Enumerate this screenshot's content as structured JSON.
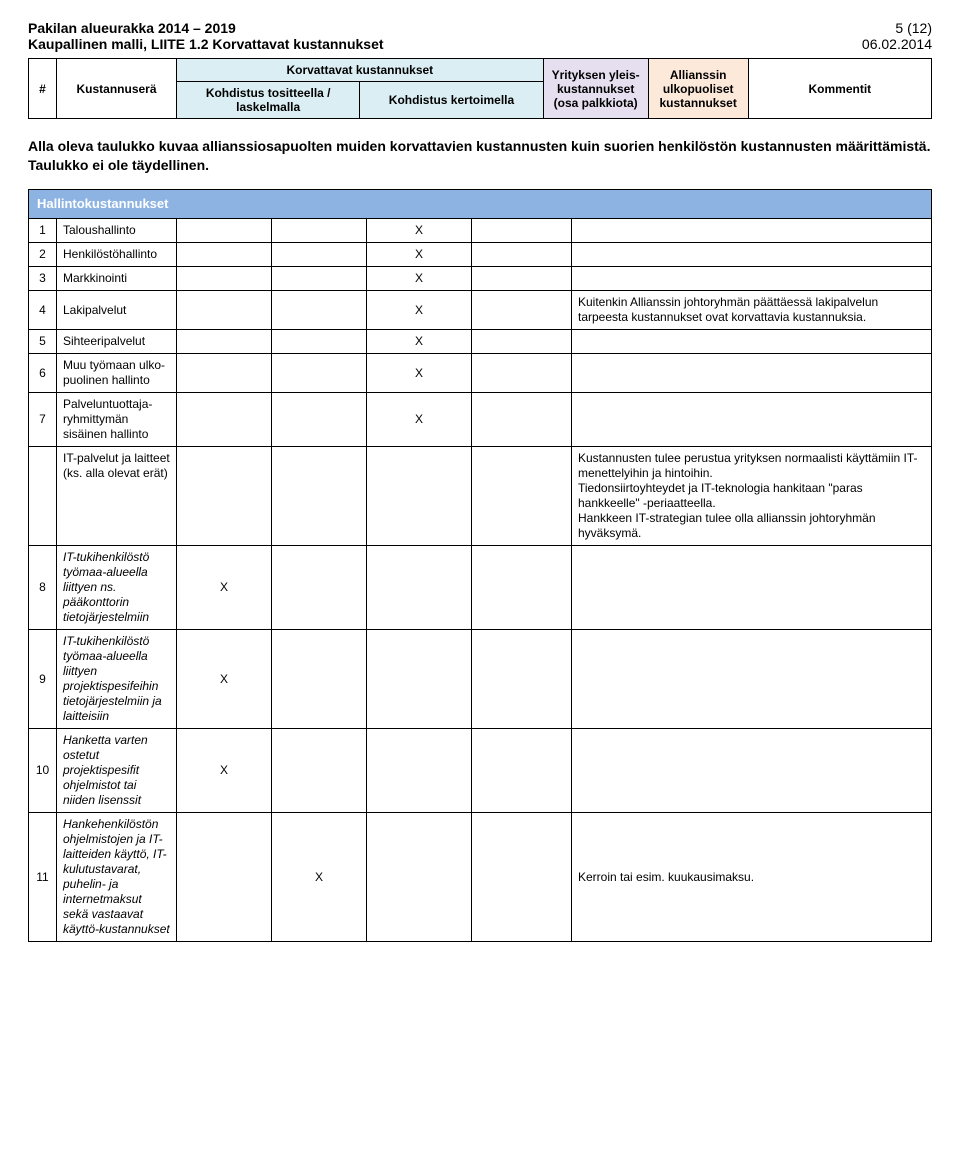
{
  "header": {
    "title_line1": "Pakilan alueurakka 2014 – 2019",
    "title_line2": "Kaupallinen malli, LIITE 1.2 Korvattavat kustannukset",
    "page_no": "5 (12)",
    "date": "06.02.2014"
  },
  "columns": {
    "num": "#",
    "kustannusera": "Kustannuserä",
    "korvattavat_group": "Korvattavat kustannukset",
    "kohdistus_tositteella": "Kohdistus tositteella / laskelmalla",
    "kohdistus_kertoimella": "Kohdistus kertoimella",
    "yleiskustannukset": "Yrityksen yleis-kustannukset (osa palkkiota)",
    "allianssin": "Allianssin ulkopuoliset kustannukset",
    "kommentit": "Kommentit"
  },
  "intro_para": "Alla oleva taulukko kuvaa allianssiosapuolten muiden korvattavien kustannusten kuin suorien henkilöstön kustannusten määrittämistä. Taulukko ei ole täydellinen.",
  "section_title": "Hallintokustannukset",
  "rows": [
    {
      "n": "1",
      "name": "Taloushallinto",
      "k1": "",
      "k2": "",
      "yl": "X",
      "al": "",
      "kom": ""
    },
    {
      "n": "2",
      "name": "Henkilöstöhallinto",
      "k1": "",
      "k2": "",
      "yl": "X",
      "al": "",
      "kom": ""
    },
    {
      "n": "3",
      "name": "Markkinointi",
      "k1": "",
      "k2": "",
      "yl": "X",
      "al": "",
      "kom": ""
    },
    {
      "n": "4",
      "name": "Lakipalvelut",
      "k1": "",
      "k2": "",
      "yl": "X",
      "al": "",
      "kom": "Kuitenkin Allianssin johtoryhmän päättäessä lakipalvelun tarpeesta kustannukset ovat korvattavia kustannuksia."
    },
    {
      "n": "5",
      "name": "Sihteeripalvelut",
      "k1": "",
      "k2": "",
      "yl": "X",
      "al": "",
      "kom": ""
    },
    {
      "n": "6",
      "name": "Muu työmaan ulko-puolinen hallinto",
      "k1": "",
      "k2": "",
      "yl": "X",
      "al": "",
      "kom": ""
    },
    {
      "n": "7",
      "name": "Palveluntuottaja-ryhmittymän sisäinen hallinto",
      "k1": "",
      "k2": "",
      "yl": "X",
      "al": "",
      "kom": ""
    }
  ],
  "it_block": {
    "name": "IT-palvelut ja laitteet (ks. alla olevat erät)",
    "kom": "Kustannusten tulee perustua yrityksen normaalisti käyttämiin IT-menettelyihin ja hintoihin.\nTiedonsiirtoyhteydet ja IT-teknologia hankitaan \"paras hankkeelle\" -periaatteella.\nHankkeen IT-strategian tulee olla allianssin johtoryhmän hyväksymä."
  },
  "rows2": [
    {
      "n": "8",
      "name": "IT-tukihenkilöstö työmaa-alueella liittyen ns. pääkonttorin tietojärjestelmiin",
      "k1": "X",
      "k2": "",
      "yl": "",
      "al": "",
      "kom": ""
    },
    {
      "n": "9",
      "name": "IT-tukihenkilöstö työmaa-alueella liittyen projektispesifeihin tietojärjestelmiin ja laitteisiin",
      "k1": "X",
      "k2": "",
      "yl": "",
      "al": "",
      "kom": ""
    },
    {
      "n": "10",
      "name": "Hanketta varten ostetut projektispesifit ohjelmistot tai niiden lisenssit",
      "k1": "X",
      "k2": "",
      "yl": "",
      "al": "",
      "kom": ""
    },
    {
      "n": "11",
      "name": "Hankehenkilöstön ohjelmistojen ja IT-laitteiden käyttö, IT-kulutustavarat, puhelin- ja internetmaksut sekä vastaavat käyttö-kustannukset",
      "k1": "",
      "k2": "X",
      "yl": "",
      "al": "",
      "kom": "Kerroin tai esim. kuukausimaksu."
    }
  ],
  "colors": {
    "section_bg": "#8db3e2",
    "korv_sub_bg": "#dbeef3",
    "yleis_bg": "#e6dff0",
    "alli_bg": "#fde9d9"
  }
}
